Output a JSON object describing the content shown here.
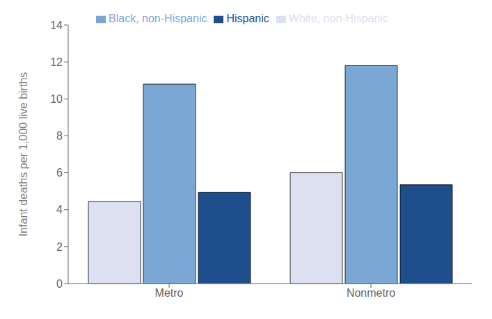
{
  "chart_data": {
    "type": "bar",
    "categories": [
      "Metro",
      "Nonmetro"
    ],
    "series": [
      {
        "name": "White, non-Hispanic",
        "color": "#dde0f0",
        "values": [
          4.45,
          6.0
        ]
      },
      {
        "name": "Black, non-Hispanic",
        "color": "#7ba7d4",
        "values": [
          10.8,
          11.8
        ]
      },
      {
        "name": "Hispanic",
        "color": "#1e4f8c",
        "values": [
          4.95,
          5.35
        ]
      }
    ],
    "ylabel": "Infant deaths per 1,000 live births",
    "ylim": [
      0,
      14
    ],
    "yticks": [
      0,
      2,
      4,
      6,
      8,
      10,
      12,
      14
    ],
    "grid": false,
    "legend": "top"
  }
}
